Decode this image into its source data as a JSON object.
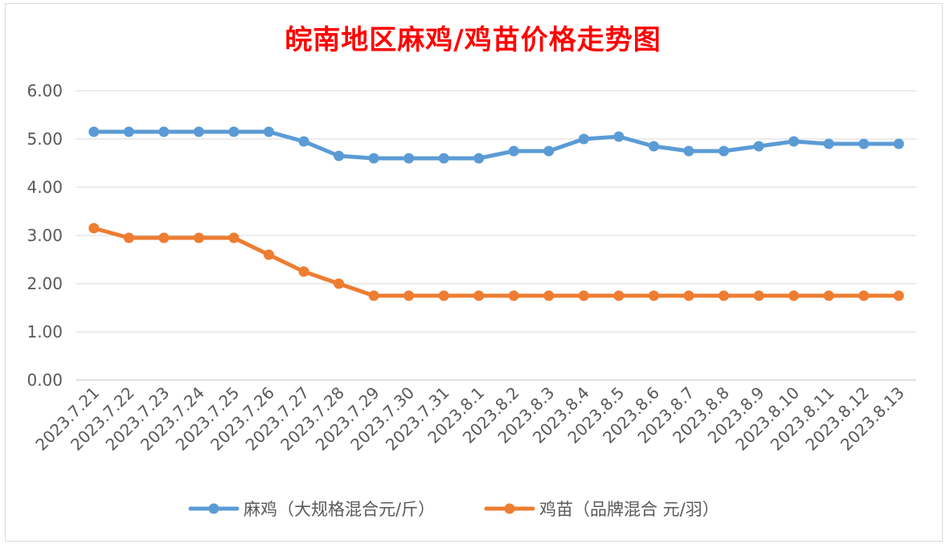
{
  "chart_data": {
    "type": "line",
    "title": "皖南地区麻鸡/鸡苗价格走势图",
    "categories": [
      "2023.7.21",
      "2023.7.22",
      "2023.7.23",
      "2023.7.24",
      "2023.7.25",
      "2023.7.26",
      "2023.7.27",
      "2023.7.28",
      "2023.7.29",
      "2023.7.30",
      "2023.7.31",
      "2023.8.1",
      "2023.8.2",
      "2023.8.3",
      "2023.8.4",
      "2023.8.5",
      "2023.8.6",
      "2023.8.7",
      "2023.8.8",
      "2023.8.9",
      "2023.8.10",
      "2023.8.11",
      "2023.8.12",
      "2023.8.13"
    ],
    "series": [
      {
        "name": "麻鸡（大规格混合元/斤）",
        "color": "#5b9bd5",
        "values": [
          5.15,
          5.15,
          5.15,
          5.15,
          5.15,
          5.15,
          4.95,
          4.65,
          4.6,
          4.6,
          4.6,
          4.6,
          4.75,
          4.75,
          5.0,
          5.05,
          4.85,
          4.75,
          4.75,
          4.85,
          4.95,
          4.9,
          4.9,
          4.9
        ]
      },
      {
        "name": "鸡苗（品牌混合 元/羽）",
        "color": "#ed7d31",
        "values": [
          3.15,
          2.95,
          2.95,
          2.95,
          2.95,
          2.6,
          2.25,
          2.0,
          1.75,
          1.75,
          1.75,
          1.75,
          1.75,
          1.75,
          1.75,
          1.75,
          1.75,
          1.75,
          1.75,
          1.75,
          1.75,
          1.75,
          1.75,
          1.75
        ]
      }
    ],
    "ylim": [
      0,
      6
    ],
    "yticks": [
      "0.00",
      "1.00",
      "2.00",
      "3.00",
      "4.00",
      "5.00",
      "6.00"
    ],
    "grid": true,
    "legend": "bottom"
  }
}
